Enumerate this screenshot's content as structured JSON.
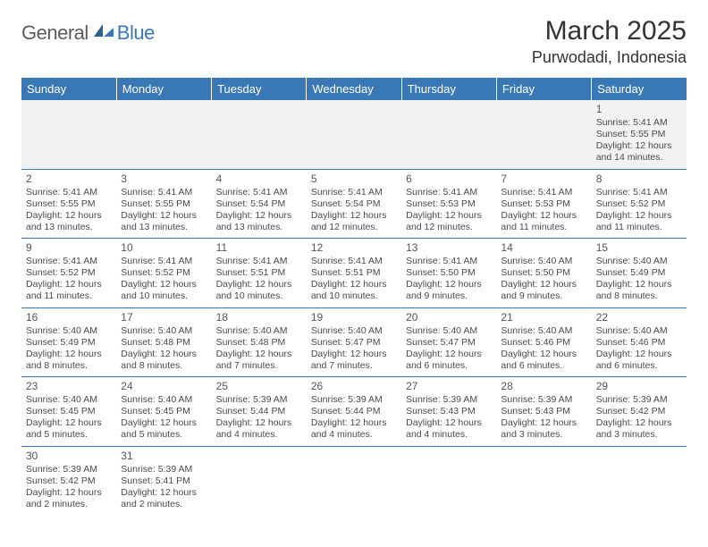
{
  "brand": {
    "part1": "General",
    "part2": "Blue"
  },
  "header": {
    "month_title": "March 2025",
    "location": "Purwodadi, Indonesia"
  },
  "colors": {
    "accent": "#3a78b5",
    "header_text": "#ffffff",
    "body_text": "#4a4a4a",
    "first_row_bg": "#f2f2f2"
  },
  "day_headers": [
    "Sunday",
    "Monday",
    "Tuesday",
    "Wednesday",
    "Thursday",
    "Friday",
    "Saturday"
  ],
  "weeks": [
    [
      {
        "empty": true
      },
      {
        "empty": true
      },
      {
        "empty": true
      },
      {
        "empty": true
      },
      {
        "empty": true
      },
      {
        "empty": true
      },
      {
        "day": "1",
        "sunrise": "Sunrise: 5:41 AM",
        "sunset": "Sunset: 5:55 PM",
        "daylight1": "Daylight: 12 hours",
        "daylight2": "and 14 minutes."
      }
    ],
    [
      {
        "day": "2",
        "sunrise": "Sunrise: 5:41 AM",
        "sunset": "Sunset: 5:55 PM",
        "daylight1": "Daylight: 12 hours",
        "daylight2": "and 13 minutes."
      },
      {
        "day": "3",
        "sunrise": "Sunrise: 5:41 AM",
        "sunset": "Sunset: 5:55 PM",
        "daylight1": "Daylight: 12 hours",
        "daylight2": "and 13 minutes."
      },
      {
        "day": "4",
        "sunrise": "Sunrise: 5:41 AM",
        "sunset": "Sunset: 5:54 PM",
        "daylight1": "Daylight: 12 hours",
        "daylight2": "and 13 minutes."
      },
      {
        "day": "5",
        "sunrise": "Sunrise: 5:41 AM",
        "sunset": "Sunset: 5:54 PM",
        "daylight1": "Daylight: 12 hours",
        "daylight2": "and 12 minutes."
      },
      {
        "day": "6",
        "sunrise": "Sunrise: 5:41 AM",
        "sunset": "Sunset: 5:53 PM",
        "daylight1": "Daylight: 12 hours",
        "daylight2": "and 12 minutes."
      },
      {
        "day": "7",
        "sunrise": "Sunrise: 5:41 AM",
        "sunset": "Sunset: 5:53 PM",
        "daylight1": "Daylight: 12 hours",
        "daylight2": "and 11 minutes."
      },
      {
        "day": "8",
        "sunrise": "Sunrise: 5:41 AM",
        "sunset": "Sunset: 5:52 PM",
        "daylight1": "Daylight: 12 hours",
        "daylight2": "and 11 minutes."
      }
    ],
    [
      {
        "day": "9",
        "sunrise": "Sunrise: 5:41 AM",
        "sunset": "Sunset: 5:52 PM",
        "daylight1": "Daylight: 12 hours",
        "daylight2": "and 11 minutes."
      },
      {
        "day": "10",
        "sunrise": "Sunrise: 5:41 AM",
        "sunset": "Sunset: 5:52 PM",
        "daylight1": "Daylight: 12 hours",
        "daylight2": "and 10 minutes."
      },
      {
        "day": "11",
        "sunrise": "Sunrise: 5:41 AM",
        "sunset": "Sunset: 5:51 PM",
        "daylight1": "Daylight: 12 hours",
        "daylight2": "and 10 minutes."
      },
      {
        "day": "12",
        "sunrise": "Sunrise: 5:41 AM",
        "sunset": "Sunset: 5:51 PM",
        "daylight1": "Daylight: 12 hours",
        "daylight2": "and 10 minutes."
      },
      {
        "day": "13",
        "sunrise": "Sunrise: 5:41 AM",
        "sunset": "Sunset: 5:50 PM",
        "daylight1": "Daylight: 12 hours",
        "daylight2": "and 9 minutes."
      },
      {
        "day": "14",
        "sunrise": "Sunrise: 5:40 AM",
        "sunset": "Sunset: 5:50 PM",
        "daylight1": "Daylight: 12 hours",
        "daylight2": "and 9 minutes."
      },
      {
        "day": "15",
        "sunrise": "Sunrise: 5:40 AM",
        "sunset": "Sunset: 5:49 PM",
        "daylight1": "Daylight: 12 hours",
        "daylight2": "and 8 minutes."
      }
    ],
    [
      {
        "day": "16",
        "sunrise": "Sunrise: 5:40 AM",
        "sunset": "Sunset: 5:49 PM",
        "daylight1": "Daylight: 12 hours",
        "daylight2": "and 8 minutes."
      },
      {
        "day": "17",
        "sunrise": "Sunrise: 5:40 AM",
        "sunset": "Sunset: 5:48 PM",
        "daylight1": "Daylight: 12 hours",
        "daylight2": "and 8 minutes."
      },
      {
        "day": "18",
        "sunrise": "Sunrise: 5:40 AM",
        "sunset": "Sunset: 5:48 PM",
        "daylight1": "Daylight: 12 hours",
        "daylight2": "and 7 minutes."
      },
      {
        "day": "19",
        "sunrise": "Sunrise: 5:40 AM",
        "sunset": "Sunset: 5:47 PM",
        "daylight1": "Daylight: 12 hours",
        "daylight2": "and 7 minutes."
      },
      {
        "day": "20",
        "sunrise": "Sunrise: 5:40 AM",
        "sunset": "Sunset: 5:47 PM",
        "daylight1": "Daylight: 12 hours",
        "daylight2": "and 6 minutes."
      },
      {
        "day": "21",
        "sunrise": "Sunrise: 5:40 AM",
        "sunset": "Sunset: 5:46 PM",
        "daylight1": "Daylight: 12 hours",
        "daylight2": "and 6 minutes."
      },
      {
        "day": "22",
        "sunrise": "Sunrise: 5:40 AM",
        "sunset": "Sunset: 5:46 PM",
        "daylight1": "Daylight: 12 hours",
        "daylight2": "and 6 minutes."
      }
    ],
    [
      {
        "day": "23",
        "sunrise": "Sunrise: 5:40 AM",
        "sunset": "Sunset: 5:45 PM",
        "daylight1": "Daylight: 12 hours",
        "daylight2": "and 5 minutes."
      },
      {
        "day": "24",
        "sunrise": "Sunrise: 5:40 AM",
        "sunset": "Sunset: 5:45 PM",
        "daylight1": "Daylight: 12 hours",
        "daylight2": "and 5 minutes."
      },
      {
        "day": "25",
        "sunrise": "Sunrise: 5:39 AM",
        "sunset": "Sunset: 5:44 PM",
        "daylight1": "Daylight: 12 hours",
        "daylight2": "and 4 minutes."
      },
      {
        "day": "26",
        "sunrise": "Sunrise: 5:39 AM",
        "sunset": "Sunset: 5:44 PM",
        "daylight1": "Daylight: 12 hours",
        "daylight2": "and 4 minutes."
      },
      {
        "day": "27",
        "sunrise": "Sunrise: 5:39 AM",
        "sunset": "Sunset: 5:43 PM",
        "daylight1": "Daylight: 12 hours",
        "daylight2": "and 4 minutes."
      },
      {
        "day": "28",
        "sunrise": "Sunrise: 5:39 AM",
        "sunset": "Sunset: 5:43 PM",
        "daylight1": "Daylight: 12 hours",
        "daylight2": "and 3 minutes."
      },
      {
        "day": "29",
        "sunrise": "Sunrise: 5:39 AM",
        "sunset": "Sunset: 5:42 PM",
        "daylight1": "Daylight: 12 hours",
        "daylight2": "and 3 minutes."
      }
    ],
    [
      {
        "day": "30",
        "sunrise": "Sunrise: 5:39 AM",
        "sunset": "Sunset: 5:42 PM",
        "daylight1": "Daylight: 12 hours",
        "daylight2": "and 2 minutes."
      },
      {
        "day": "31",
        "sunrise": "Sunrise: 5:39 AM",
        "sunset": "Sunset: 5:41 PM",
        "daylight1": "Daylight: 12 hours",
        "daylight2": "and 2 minutes."
      },
      {
        "empty": true
      },
      {
        "empty": true
      },
      {
        "empty": true
      },
      {
        "empty": true
      },
      {
        "empty": true
      }
    ]
  ]
}
